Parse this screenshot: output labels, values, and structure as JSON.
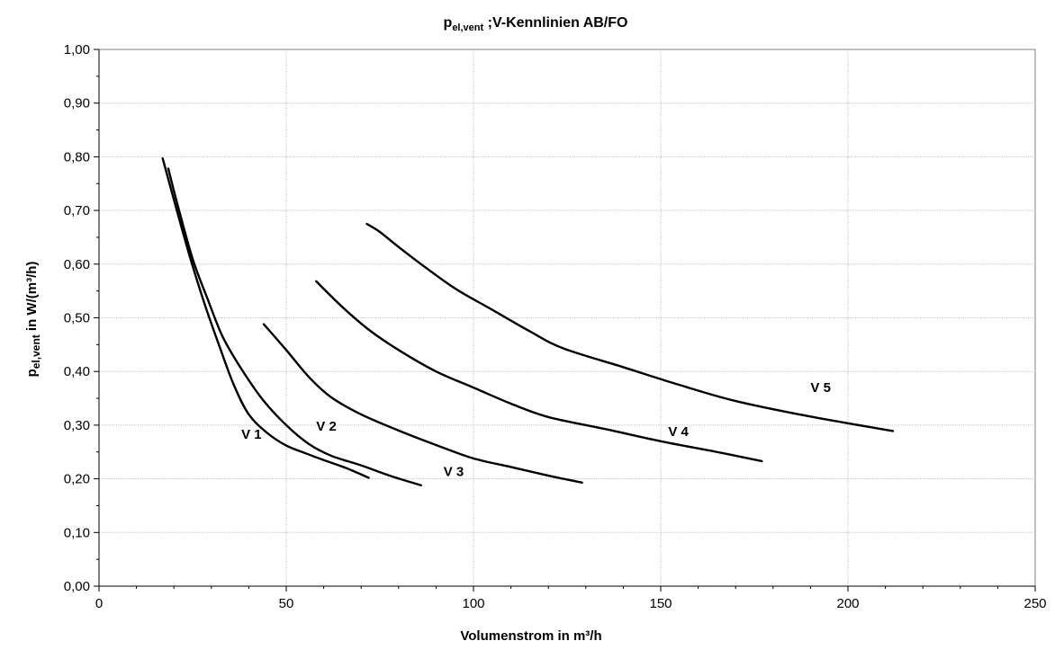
{
  "chart_data": {
    "type": "line",
    "title": {
      "main": "p",
      "sub": "el,vent",
      "rest": " ;V-Kennlinien AB/FO"
    },
    "xlabel": "Volumenstrom in m³/h",
    "ylabel": {
      "main": "p",
      "sub": "el,vent",
      "rest": " in W/(m³/h)"
    },
    "xlim": [
      0,
      250
    ],
    "ylim": [
      0,
      1
    ],
    "x_ticks": [
      {
        "value": 0,
        "label": "0"
      },
      {
        "value": 50,
        "label": "50"
      },
      {
        "value": 100,
        "label": "100"
      },
      {
        "value": 150,
        "label": "150"
      },
      {
        "value": 200,
        "label": "200"
      },
      {
        "value": 250,
        "label": "250"
      }
    ],
    "y_ticks": [
      {
        "value": 0,
        "label": "0,00"
      },
      {
        "value": 0.1,
        "label": "0,10"
      },
      {
        "value": 0.2,
        "label": "0,20"
      },
      {
        "value": 0.3,
        "label": "0,30"
      },
      {
        "value": 0.4,
        "label": "0,40"
      },
      {
        "value": 0.5,
        "label": "0,50"
      },
      {
        "value": 0.6,
        "label": "0,60"
      },
      {
        "value": 0.7,
        "label": "0,70"
      },
      {
        "value": 0.8,
        "label": "0,80"
      },
      {
        "value": 0.9,
        "label": "0,90"
      },
      {
        "value": 1.0,
        "label": "1,00"
      }
    ],
    "grid": true,
    "series": [
      {
        "name": "V 1",
        "label_at": [
          38,
          0.275
        ],
        "points": [
          [
            17,
            0.797
          ],
          [
            20,
            0.72
          ],
          [
            24,
            0.62
          ],
          [
            28,
            0.53
          ],
          [
            32,
            0.45
          ],
          [
            36,
            0.375
          ],
          [
            40,
            0.32
          ],
          [
            45,
            0.285
          ],
          [
            50,
            0.262
          ],
          [
            55,
            0.248
          ],
          [
            60,
            0.235
          ],
          [
            66,
            0.22
          ],
          [
            72,
            0.202
          ]
        ]
      },
      {
        "name": "V 2",
        "label_at": [
          58,
          0.29
        ],
        "points": [
          [
            18.5,
            0.778
          ],
          [
            21,
            0.71
          ],
          [
            25,
            0.61
          ],
          [
            29,
            0.535
          ],
          [
            33,
            0.465
          ],
          [
            38,
            0.405
          ],
          [
            44,
            0.345
          ],
          [
            50,
            0.3
          ],
          [
            56,
            0.265
          ],
          [
            62,
            0.243
          ],
          [
            70,
            0.225
          ],
          [
            78,
            0.205
          ],
          [
            86,
            0.188
          ]
        ]
      },
      {
        "name": "V 3",
        "label_at": [
          92,
          0.205
        ],
        "points": [
          [
            44,
            0.488
          ],
          [
            50,
            0.44
          ],
          [
            56,
            0.39
          ],
          [
            62,
            0.352
          ],
          [
            70,
            0.32
          ],
          [
            80,
            0.29
          ],
          [
            90,
            0.263
          ],
          [
            100,
            0.238
          ],
          [
            110,
            0.222
          ],
          [
            120,
            0.206
          ],
          [
            129,
            0.193
          ]
        ]
      },
      {
        "name": "V 4",
        "label_at": [
          152,
          0.28
        ],
        "points": [
          [
            58,
            0.568
          ],
          [
            65,
            0.52
          ],
          [
            72,
            0.478
          ],
          [
            80,
            0.44
          ],
          [
            90,
            0.4
          ],
          [
            100,
            0.37
          ],
          [
            110,
            0.34
          ],
          [
            120,
            0.315
          ],
          [
            135,
            0.293
          ],
          [
            150,
            0.27
          ],
          [
            165,
            0.25
          ],
          [
            177,
            0.233
          ]
        ]
      },
      {
        "name": "V 5",
        "label_at": [
          190,
          0.362
        ],
        "points": [
          [
            71.5,
            0.675
          ],
          [
            75,
            0.66
          ],
          [
            80,
            0.632
          ],
          [
            86,
            0.6
          ],
          [
            95,
            0.555
          ],
          [
            105,
            0.515
          ],
          [
            115,
            0.475
          ],
          [
            124,
            0.443
          ],
          [
            140,
            0.408
          ],
          [
            155,
            0.375
          ],
          [
            170,
            0.345
          ],
          [
            190,
            0.316
          ],
          [
            212,
            0.289
          ]
        ]
      }
    ]
  }
}
